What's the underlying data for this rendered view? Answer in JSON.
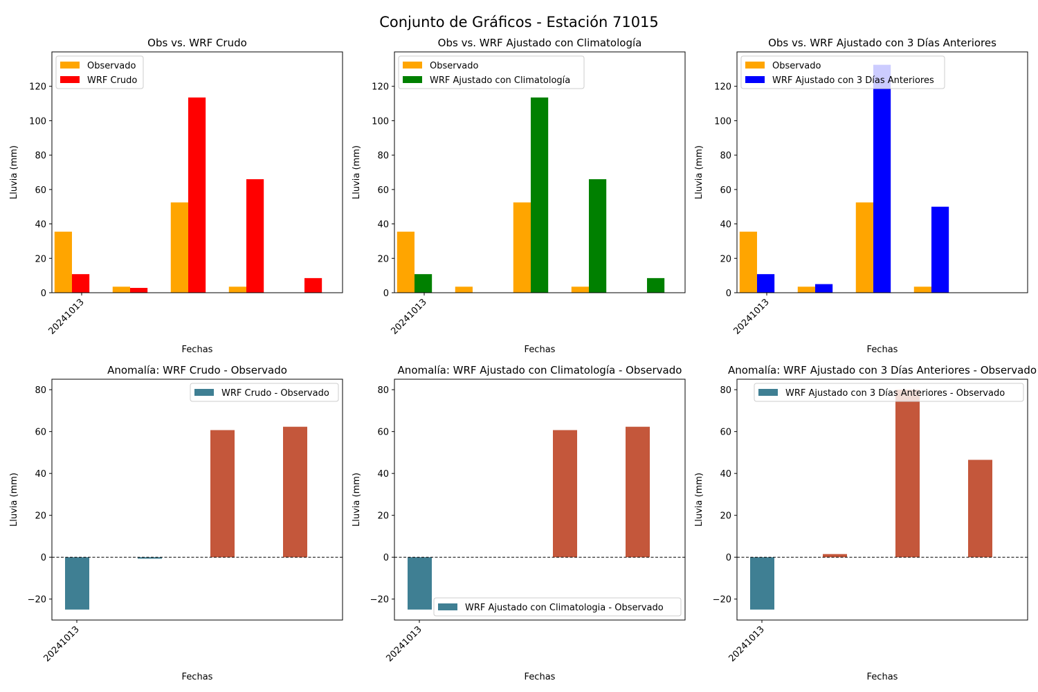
{
  "figure_title": "Conjunto de Gráficos - Estación 71015",
  "chart_data": [
    {
      "type": "bar",
      "title": "Obs vs. WRF Crudo",
      "xlabel": "Fechas",
      "ylabel": "Lluvia (mm)",
      "ylim": [
        0,
        140
      ],
      "yticks": [
        "0",
        "20",
        "40",
        "60",
        "80",
        "100",
        "120"
      ],
      "category_count": 5,
      "tick_labels": [
        "20241013"
      ],
      "legend_position": "top-left",
      "series": [
        {
          "name": "Observado",
          "color": "#ffa500",
          "values": [
            35.5,
            3.5,
            52.5,
            3.5,
            0
          ]
        },
        {
          "name": "WRF Crudo",
          "color": "#ff0000",
          "values": [
            10.8,
            2.8,
            113.5,
            66.0,
            8.5
          ]
        }
      ]
    },
    {
      "type": "bar",
      "title": "Obs vs. WRF Ajustado con Climatología",
      "xlabel": "Fechas",
      "ylabel": "Lluvia (mm)",
      "ylim": [
        0,
        140
      ],
      "yticks": [
        "0",
        "20",
        "40",
        "60",
        "80",
        "100",
        "120"
      ],
      "category_count": 5,
      "tick_labels": [
        "20241013"
      ],
      "legend_position": "top-left",
      "series": [
        {
          "name": "Observado",
          "color": "#ffa500",
          "values": [
            35.5,
            3.5,
            52.5,
            3.5,
            0
          ]
        },
        {
          "name": "WRF Ajustado con Climatología",
          "color": "#008000",
          "values": [
            10.8,
            0,
            113.5,
            66.0,
            8.5
          ]
        }
      ]
    },
    {
      "type": "bar",
      "title": "Obs vs. WRF Ajustado con 3 Días Anteriores",
      "xlabel": "Fechas",
      "ylabel": "Lluvia (mm)",
      "ylim": [
        0,
        140
      ],
      "yticks": [
        "0",
        "20",
        "40",
        "60",
        "80",
        "100",
        "120"
      ],
      "category_count": 5,
      "tick_labels": [
        "20241013"
      ],
      "legend_position": "top-left",
      "series": [
        {
          "name": "Observado",
          "color": "#ffa500",
          "values": [
            35.5,
            3.5,
            52.5,
            3.5,
            0
          ]
        },
        {
          "name": "WRF Ajustado con 3 Días Anteriores",
          "color": "#0000ff",
          "values": [
            10.8,
            5.0,
            132.5,
            50.0,
            0
          ]
        }
      ]
    },
    {
      "type": "bar",
      "title": "Anomalía: WRF Crudo - Observado",
      "xlabel": "Fechas",
      "ylabel": "Lluvia (mm)",
      "ylim": [
        -30,
        85
      ],
      "yticks": [
        "−20",
        "0",
        "20",
        "40",
        "60",
        "80"
      ],
      "ytick_values": [
        -20,
        0,
        20,
        40,
        60,
        80
      ],
      "category_count": 4,
      "tick_labels": [
        "20241013"
      ],
      "legend_position": "top-right",
      "legend_label": "WRF Crudo - Observado",
      "positive_color": "#c4573b",
      "negative_color": "#3f7f93",
      "values": [
        -25.0,
        -0.7,
        60.7,
        62.3
      ]
    },
    {
      "type": "bar",
      "title": "Anomalía: WRF Ajustado con Climatología - Observado",
      "xlabel": "Fechas",
      "ylabel": "Lluvia (mm)",
      "ylim": [
        -30,
        85
      ],
      "yticks": [
        "−20",
        "0",
        "20",
        "40",
        "60",
        "80"
      ],
      "ytick_values": [
        -20,
        0,
        20,
        40,
        60,
        80
      ],
      "category_count": 4,
      "tick_labels": [
        "20241013"
      ],
      "legend_position": "bottom-right",
      "legend_label": "WRF Ajustado con Climatologia - Observado",
      "positive_color": "#c4573b",
      "negative_color": "#3f7f93",
      "values": [
        -25.0,
        0,
        60.7,
        62.3
      ]
    },
    {
      "type": "bar",
      "title": "Anomalía: WRF Ajustado con 3 Días Anteriores - Observado",
      "xlabel": "Fechas",
      "ylabel": "Lluvia (mm)",
      "ylim": [
        -30,
        85
      ],
      "yticks": [
        "−20",
        "0",
        "20",
        "40",
        "60",
        "80"
      ],
      "ytick_values": [
        -20,
        0,
        20,
        40,
        60,
        80
      ],
      "category_count": 4,
      "tick_labels": [
        "20241013"
      ],
      "legend_position": "top-right",
      "legend_label": "WRF Ajustado con 3 Días Anteriores - Observado",
      "positive_color": "#c4573b",
      "negative_color": "#3f7f93",
      "values": [
        -25.0,
        1.5,
        80.0,
        46.5
      ]
    }
  ]
}
